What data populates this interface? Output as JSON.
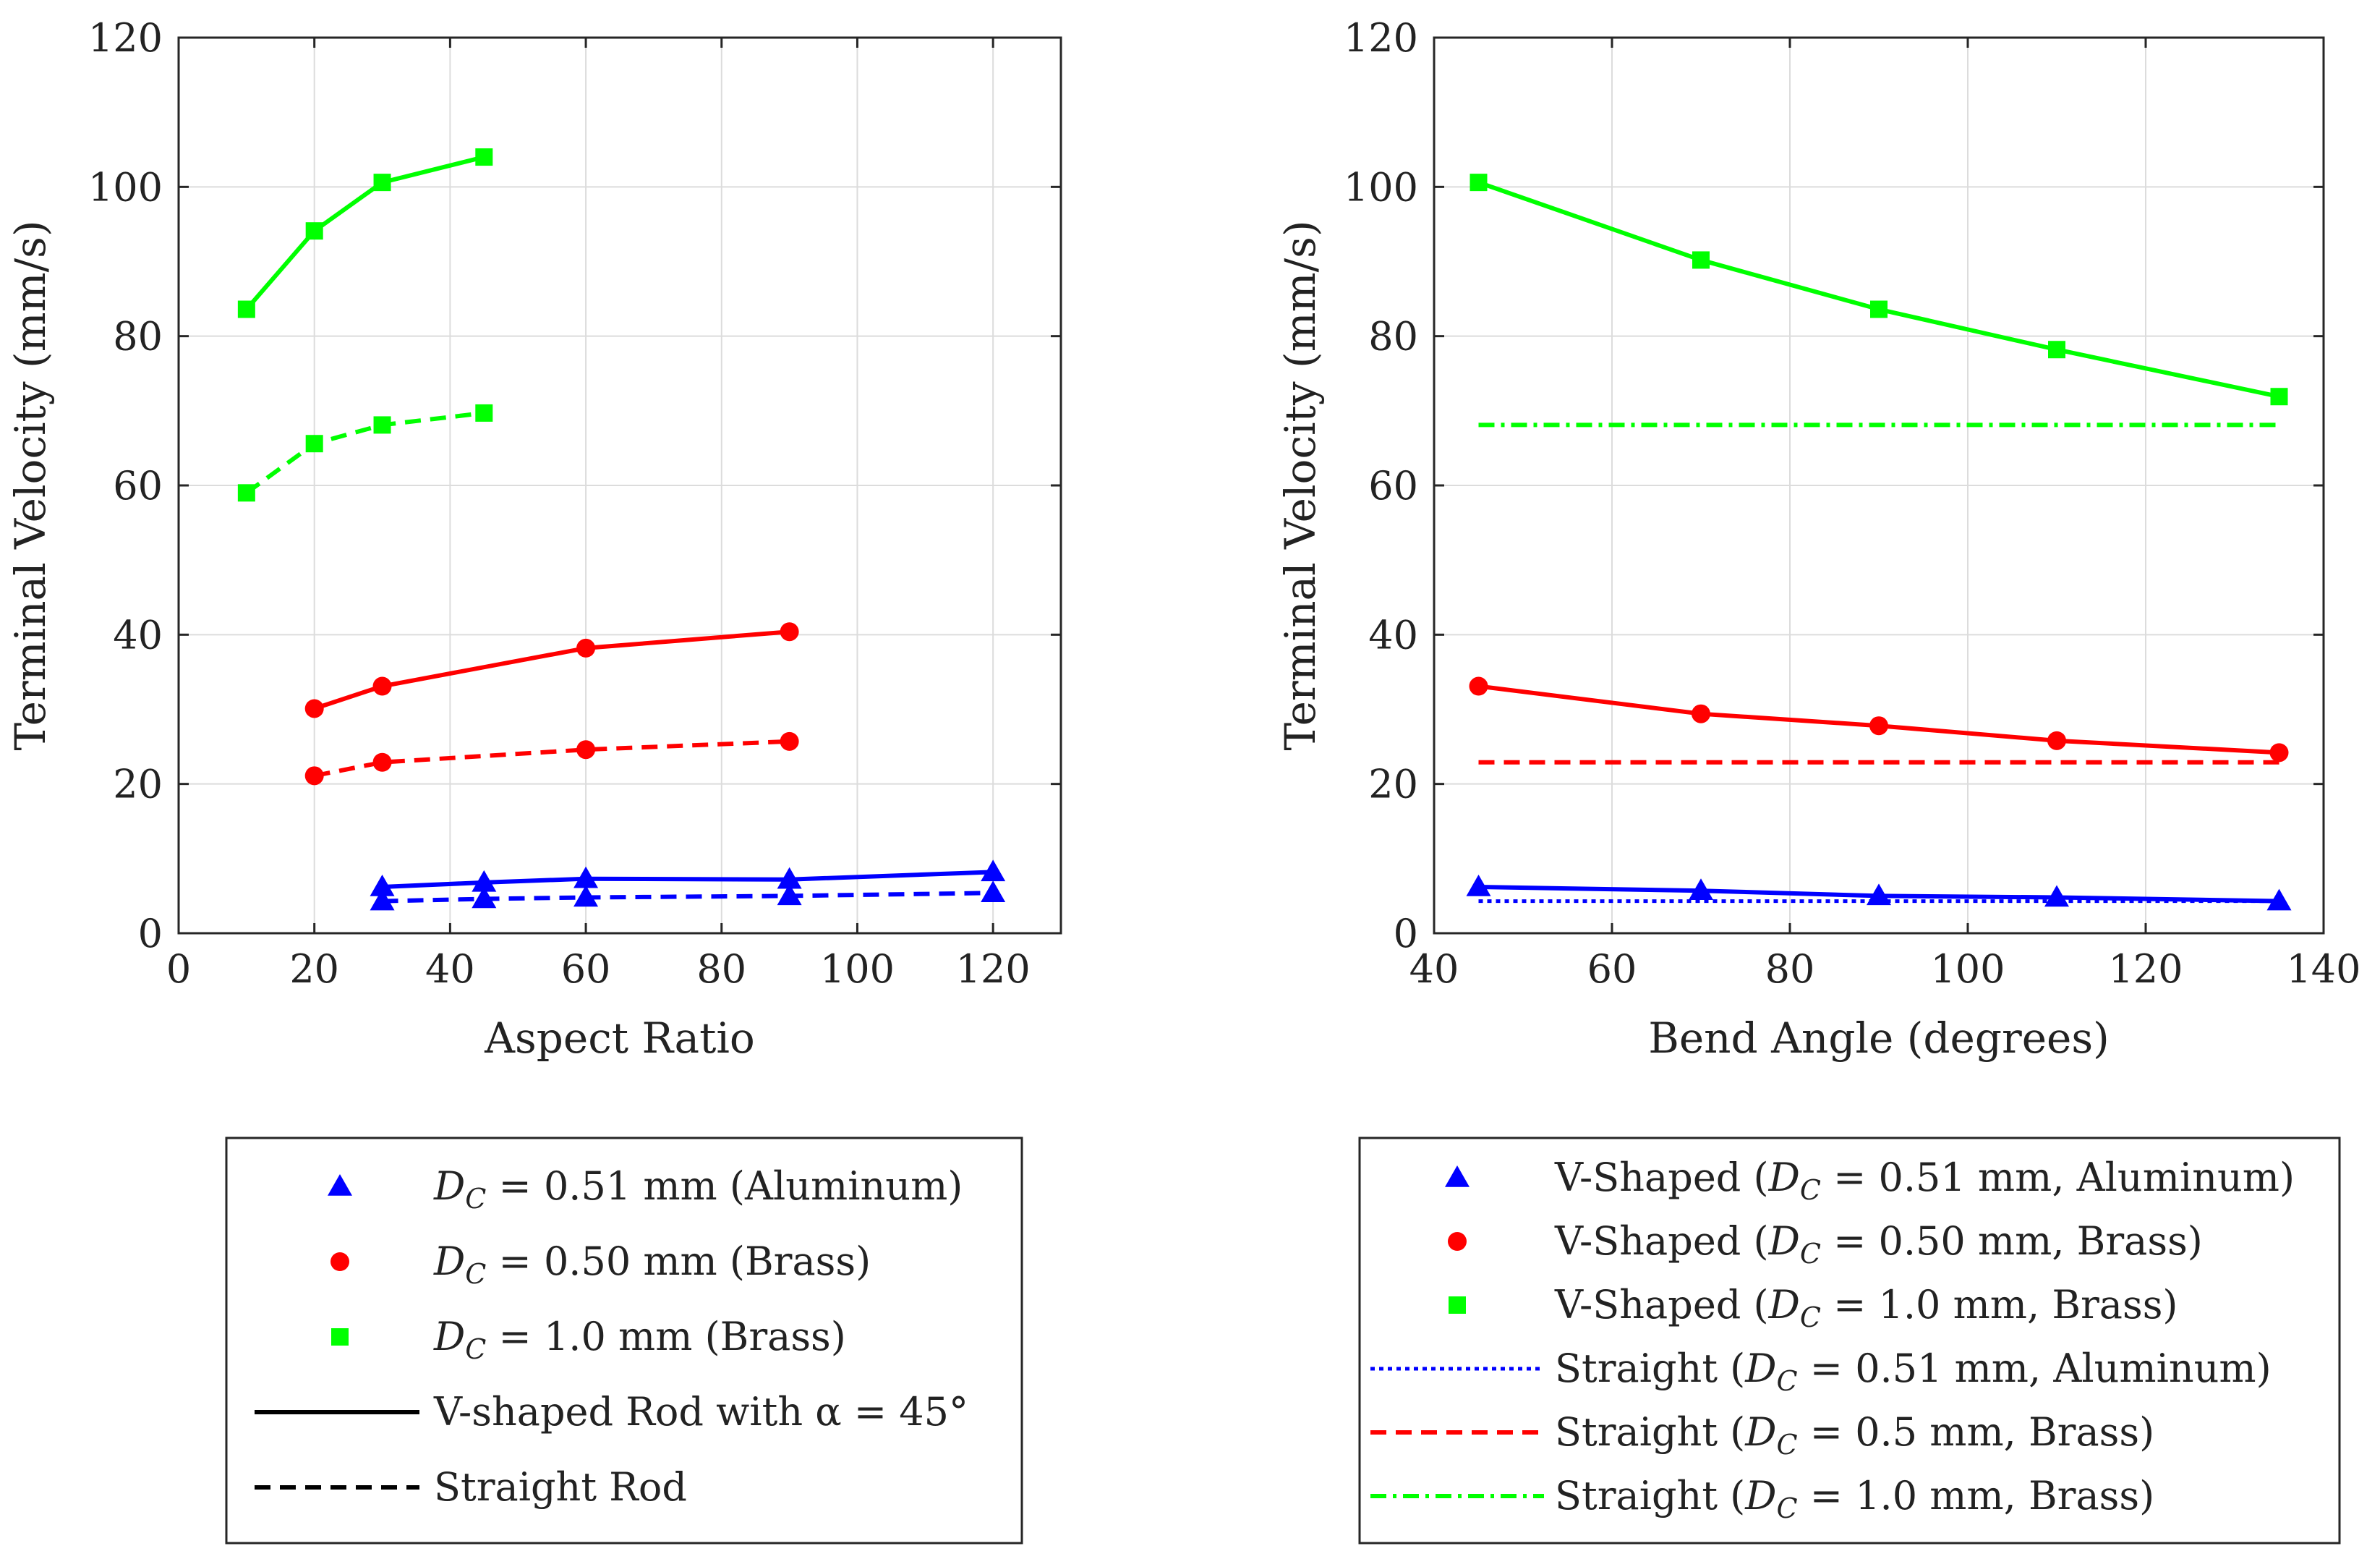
{
  "chart_data": [
    {
      "type": "line",
      "xlabel": "Aspect Ratio",
      "ylabel": "Terminal Velocity (mm/s)",
      "xlim": [
        0,
        130
      ],
      "ylim": [
        0,
        120
      ],
      "xticks": [
        0,
        20,
        40,
        60,
        80,
        100,
        120
      ],
      "yticks": [
        0,
        20,
        40,
        60,
        80,
        100,
        120
      ],
      "grid": true,
      "legend_position": "below",
      "series": [
        {
          "key": "al_v",
          "color": "#0000ff",
          "marker": "triangle",
          "dash": "solid",
          "x": [
            30,
            45,
            60,
            90,
            120
          ],
          "values": [
            6.2,
            6.8,
            7.3,
            7.2,
            8.2
          ]
        },
        {
          "key": "al_s",
          "color": "#0000ff",
          "marker": "triangle",
          "dash": "dashed",
          "x": [
            30,
            45,
            60,
            90,
            120
          ],
          "values": [
            4.3,
            4.6,
            4.8,
            5.0,
            5.4
          ]
        },
        {
          "key": "b05_v",
          "color": "#ff0000",
          "marker": "circle",
          "dash": "solid",
          "x": [
            20,
            30,
            60,
            90
          ],
          "values": [
            30.1,
            33.1,
            38.2,
            40.4
          ]
        },
        {
          "key": "b05_s",
          "color": "#ff0000",
          "marker": "circle",
          "dash": "dashed",
          "x": [
            20,
            30,
            60,
            90
          ],
          "values": [
            21.1,
            22.9,
            24.6,
            25.7
          ]
        },
        {
          "key": "b10_v",
          "color": "#00ff00",
          "marker": "square",
          "dash": "solid",
          "x": [
            10,
            20,
            30,
            45
          ],
          "values": [
            83.6,
            94.1,
            100.6,
            104.0
          ]
        },
        {
          "key": "b10_s",
          "color": "#00ff00",
          "marker": "square",
          "dash": "dashed",
          "x": [
            10,
            20,
            30,
            45
          ],
          "values": [
            59.0,
            65.6,
            68.1,
            69.7
          ]
        }
      ],
      "legend": [
        {
          "label": "D_C = 0.51 mm (Aluminum)",
          "symbol": "triangle",
          "color": "#0000ff"
        },
        {
          "label": "D_C = 0.50 mm (Brass)",
          "symbol": "circle",
          "color": "#ff0000"
        },
        {
          "label": "D_C = 1.0 mm (Brass)",
          "symbol": "square",
          "color": "#00ff00"
        },
        {
          "label": "V-shaped Rod with α = 45°",
          "symbol": "solid",
          "color": "#000000"
        },
        {
          "label": "Straight Rod",
          "symbol": "dashed",
          "color": "#000000"
        }
      ]
    },
    {
      "type": "line",
      "xlabel": "Bend Angle (degrees)",
      "ylabel": "Terminal Velocity (mm/s)",
      "xlim": [
        40,
        140
      ],
      "ylim": [
        0,
        120
      ],
      "xticks": [
        40,
        60,
        80,
        100,
        120,
        140
      ],
      "yticks": [
        0,
        20,
        40,
        60,
        80,
        100,
        120
      ],
      "grid": true,
      "legend_position": "below",
      "series": [
        {
          "key": "al_v",
          "color": "#0000ff",
          "marker": "triangle",
          "dash": "solid",
          "x": [
            45,
            70,
            90,
            110,
            135
          ],
          "values": [
            6.2,
            5.7,
            5.0,
            4.8,
            4.3
          ]
        },
        {
          "key": "b05_v",
          "color": "#ff0000",
          "marker": "circle",
          "dash": "solid",
          "x": [
            45,
            70,
            90,
            110,
            135
          ],
          "values": [
            33.1,
            29.4,
            27.8,
            25.8,
            24.2
          ]
        },
        {
          "key": "b10_v",
          "color": "#00ff00",
          "marker": "square",
          "dash": "solid",
          "x": [
            45,
            70,
            90,
            110,
            135
          ],
          "values": [
            100.6,
            90.2,
            83.6,
            78.2,
            71.9
          ]
        },
        {
          "key": "al_s",
          "color": "#0000ff",
          "marker": "none",
          "dash": "dotted",
          "x": [
            45,
            135
          ],
          "values": [
            4.3,
            4.3
          ]
        },
        {
          "key": "b05_s",
          "color": "#ff0000",
          "marker": "none",
          "dash": "dashed",
          "x": [
            45,
            135
          ],
          "values": [
            22.9,
            22.9
          ]
        },
        {
          "key": "b10_s",
          "color": "#00ff00",
          "marker": "none",
          "dash": "dashdot",
          "x": [
            45,
            135
          ],
          "values": [
            68.1,
            68.1
          ]
        }
      ],
      "legend": [
        {
          "label": "V-Shaped (D_C = 0.51 mm, Aluminum)",
          "symbol": "triangle",
          "color": "#0000ff"
        },
        {
          "label": "V-Shaped (D_C = 0.50 mm, Brass)",
          "symbol": "circle",
          "color": "#ff0000"
        },
        {
          "label": "V-Shaped (D_C = 1.0 mm, Brass)",
          "symbol": "square",
          "color": "#00ff00"
        },
        {
          "label": "Straight (D_C = 0.51 mm, Aluminum)",
          "symbol": "dotted",
          "color": "#0000ff"
        },
        {
          "label": "Straight (D_C = 0.5 mm, Brass)",
          "symbol": "dashed",
          "color": "#ff0000"
        },
        {
          "label": "Straight (D_C = 1.0 mm, Brass)",
          "symbol": "dashdot",
          "color": "#00ff00"
        }
      ]
    }
  ]
}
